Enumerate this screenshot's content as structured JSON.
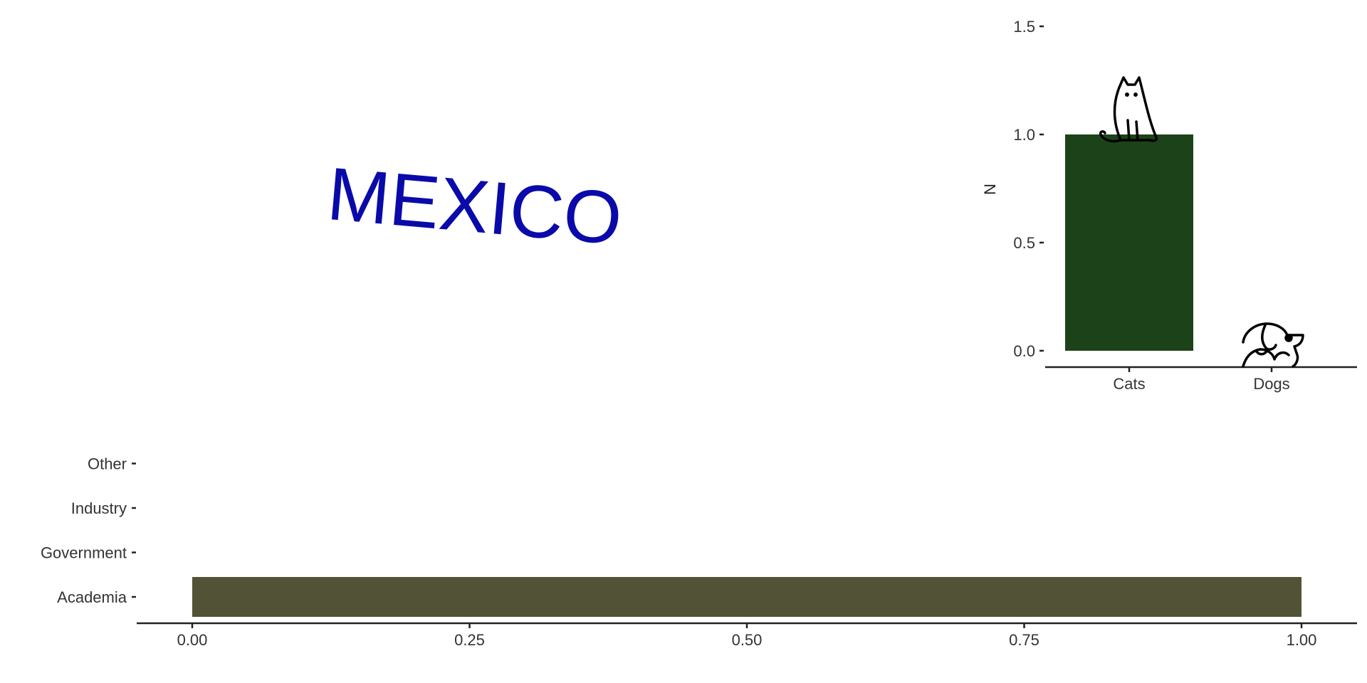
{
  "title": {
    "text": "MEXICO",
    "color": "#0a0aaa"
  },
  "icons": {
    "cats": "cat-icon",
    "dogs": "dog-icon"
  },
  "chart_data": [
    {
      "type": "bar",
      "orientation": "vertical",
      "categories": [
        "Cats",
        "Dogs"
      ],
      "values": [
        1,
        0
      ],
      "xlabel": "",
      "ylabel": "N",
      "ylim": [
        0,
        1.5
      ],
      "yticks": [
        0,
        0.5,
        1,
        1.5
      ],
      "ytick_labels": [
        "0.0",
        "0.5",
        "1.0",
        "1.5"
      ],
      "grid": false,
      "legend": "none",
      "bar_color": "#1c4219"
    },
    {
      "type": "bar",
      "orientation": "horizontal",
      "categories": [
        "Academia",
        "Government",
        "Industry",
        "Other"
      ],
      "values": [
        1,
        0,
        0,
        0
      ],
      "xlabel": "",
      "ylabel": "",
      "xlim": [
        0,
        1
      ],
      "xticks": [
        0,
        0.25,
        0.5,
        0.75,
        1
      ],
      "xtick_labels": [
        "0.00",
        "0.25",
        "0.50",
        "0.75",
        "1.00"
      ],
      "grid": false,
      "legend": "none",
      "bar_color": "#525236"
    }
  ]
}
